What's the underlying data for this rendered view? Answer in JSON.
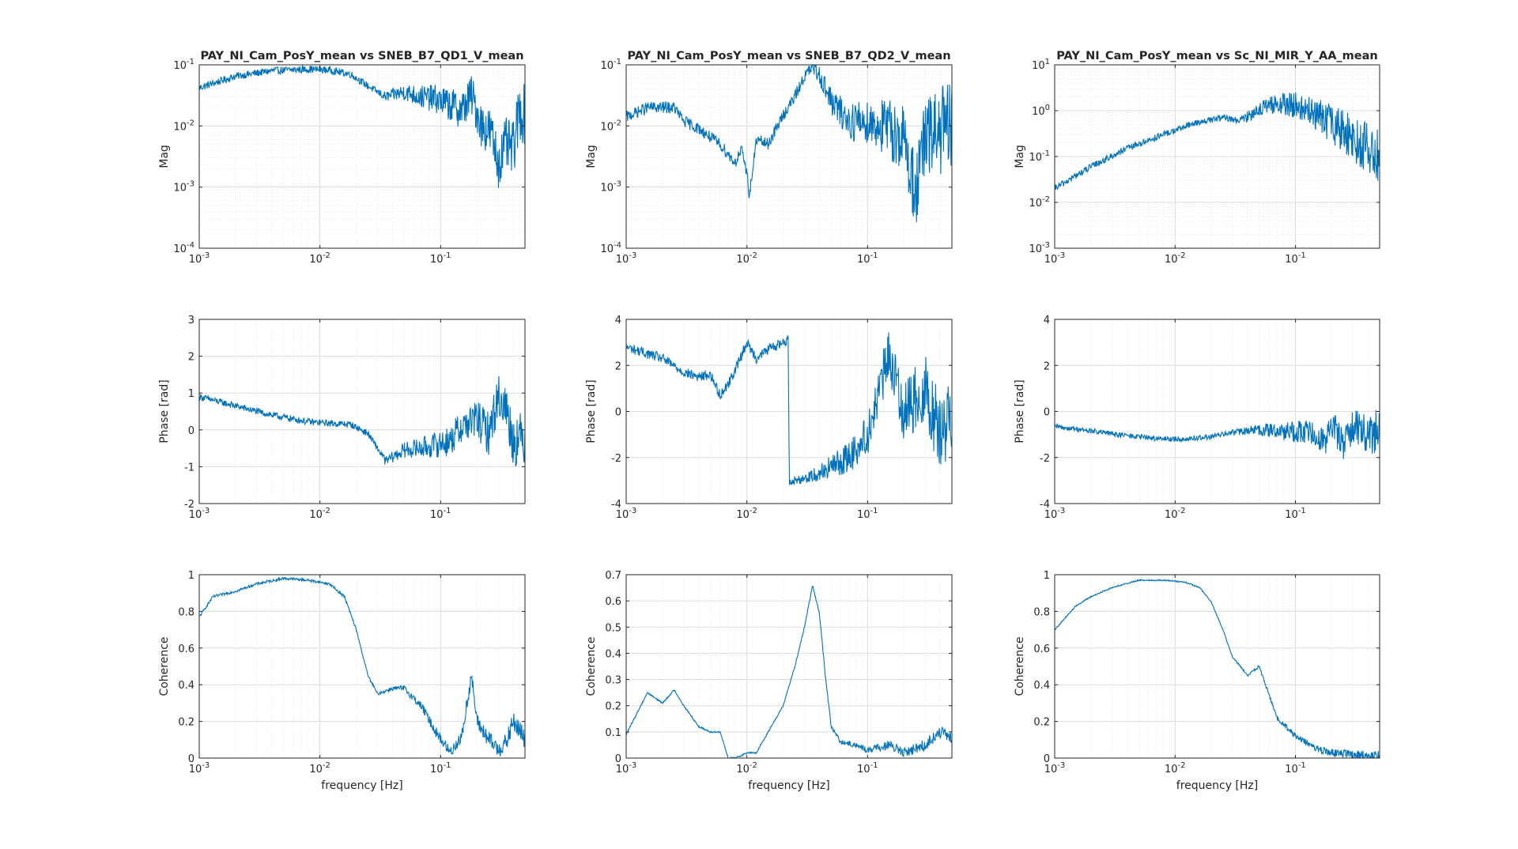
{
  "figure": {
    "columns": [
      {
        "title": "PAY_NI_Cam_PosY_mean vs SNEB_B7_QD1_V_mean"
      },
      {
        "title": "PAY_NI_Cam_PosY_mean vs SNEB_B7_QD2_V_mean"
      },
      {
        "title": "PAY_NI_Cam_PosY_mean vs Sc_NI_MIR_Y_AA_mean"
      }
    ],
    "xlabel": "frequency [Hz]",
    "line_color": "#0072BD"
  },
  "chart_data": [
    {
      "type": "line",
      "row": "magnitude",
      "column": 1,
      "title": "PAY_NI_Cam_PosY_mean vs SNEB_B7_QD1_V_mean",
      "xlabel": "",
      "ylabel": "Mag",
      "xscale": "log",
      "yscale": "log",
      "xlim": [
        0.001,
        0.5
      ],
      "ylim": [
        0.0001,
        0.1
      ],
      "xticks": [
        0.001,
        0.01,
        0.1
      ],
      "xticklabels": [
        [
          "10",
          "-3"
        ],
        [
          "10",
          "-2"
        ],
        [
          "10",
          "-1"
        ]
      ],
      "yticks": [
        0.0001,
        0.001,
        0.01,
        0.1
      ],
      "yticklabels": [
        [
          "10",
          "-4"
        ],
        [
          "10",
          "-3"
        ],
        [
          "10",
          "-2"
        ],
        [
          "10",
          "-1"
        ]
      ],
      "grid": true,
      "noise": 0.05,
      "x": [
        0.001,
        0.002,
        0.004,
        0.008,
        0.012,
        0.018,
        0.025,
        0.035,
        0.05,
        0.07,
        0.09,
        0.12,
        0.15,
        0.18,
        0.22,
        0.26,
        0.3,
        0.35,
        0.4,
        0.45,
        0.5
      ],
      "y": [
        0.042,
        0.065,
        0.08,
        0.085,
        0.082,
        0.07,
        0.045,
        0.03,
        0.036,
        0.03,
        0.028,
        0.022,
        0.018,
        0.032,
        0.01,
        0.008,
        0.0025,
        0.005,
        0.004,
        0.018,
        0.015
      ]
    },
    {
      "type": "line",
      "row": "phase",
      "column": 1,
      "xlabel": "",
      "ylabel": "Phase [rad]",
      "xscale": "log",
      "yscale": "linear",
      "xlim": [
        0.001,
        0.5
      ],
      "ylim": [
        -2,
        3
      ],
      "xticks": [
        0.001,
        0.01,
        0.1
      ],
      "xticklabels": [
        [
          "10",
          "-3"
        ],
        [
          "10",
          "-2"
        ],
        [
          "10",
          "-1"
        ]
      ],
      "yticks": [
        -2,
        -1,
        0,
        1,
        2,
        3
      ],
      "yticklabels": [
        [
          "-2"
        ],
        [
          "-1"
        ],
        [
          "0"
        ],
        [
          "1"
        ],
        [
          "2"
        ],
        [
          "3"
        ]
      ],
      "grid": true,
      "noise": 0.1,
      "x": [
        0.001,
        0.002,
        0.004,
        0.008,
        0.012,
        0.018,
        0.025,
        0.03,
        0.035,
        0.05,
        0.08,
        0.12,
        0.15,
        0.2,
        0.25,
        0.3,
        0.35,
        0.4,
        0.5
      ],
      "y": [
        0.9,
        0.65,
        0.4,
        0.22,
        0.18,
        0.15,
        -0.1,
        -0.5,
        -0.85,
        -0.55,
        -0.45,
        -0.3,
        0.1,
        0.3,
        -0.1,
        0.9,
        0.6,
        -0.3,
        -0.2
      ]
    },
    {
      "type": "line",
      "row": "coherence",
      "column": 1,
      "xlabel": "frequency [Hz]",
      "ylabel": "Coherence",
      "xscale": "log",
      "yscale": "linear",
      "xlim": [
        0.001,
        0.5
      ],
      "ylim": [
        0,
        1
      ],
      "xticks": [
        0.001,
        0.01,
        0.1
      ],
      "xticklabels": [
        [
          "10",
          "-3"
        ],
        [
          "10",
          "-2"
        ],
        [
          "10",
          "-1"
        ]
      ],
      "yticks": [
        0,
        0.2,
        0.4,
        0.6,
        0.8,
        1
      ],
      "yticklabels": [
        [
          "0"
        ],
        [
          "0.2"
        ],
        [
          "0.4"
        ],
        [
          "0.6"
        ],
        [
          "0.8"
        ],
        [
          "1"
        ]
      ],
      "grid": true,
      "noise": 0.04,
      "x": [
        0.001,
        0.0013,
        0.002,
        0.003,
        0.005,
        0.008,
        0.012,
        0.016,
        0.02,
        0.025,
        0.03,
        0.04,
        0.05,
        0.07,
        0.09,
        0.12,
        0.15,
        0.18,
        0.2,
        0.25,
        0.3,
        0.35,
        0.4,
        0.45,
        0.5
      ],
      "y": [
        0.77,
        0.88,
        0.91,
        0.95,
        0.98,
        0.97,
        0.95,
        0.88,
        0.7,
        0.45,
        0.35,
        0.38,
        0.38,
        0.28,
        0.15,
        0.03,
        0.12,
        0.45,
        0.2,
        0.1,
        0.05,
        0.08,
        0.2,
        0.15,
        0.1
      ]
    },
    {
      "type": "line",
      "row": "magnitude",
      "column": 2,
      "title": "PAY_NI_Cam_PosY_mean vs SNEB_B7_QD2_V_mean",
      "xlabel": "",
      "ylabel": "Mag",
      "xscale": "log",
      "yscale": "log",
      "xlim": [
        0.001,
        0.5
      ],
      "ylim": [
        0.0001,
        0.1
      ],
      "xticks": [
        0.001,
        0.01,
        0.1
      ],
      "xticklabels": [
        [
          "10",
          "-3"
        ],
        [
          "10",
          "-2"
        ],
        [
          "10",
          "-1"
        ]
      ],
      "yticks": [
        0.0001,
        0.001,
        0.01,
        0.1
      ],
      "yticklabels": [
        [
          "10",
          "-4"
        ],
        [
          "10",
          "-3"
        ],
        [
          "10",
          "-2"
        ],
        [
          "10",
          "-1"
        ]
      ],
      "grid": true,
      "noise": 0.08,
      "x": [
        0.001,
        0.0015,
        0.0025,
        0.003,
        0.004,
        0.006,
        0.008,
        0.009,
        0.01,
        0.0105,
        0.012,
        0.015,
        0.02,
        0.025,
        0.03,
        0.035,
        0.04,
        0.05,
        0.07,
        0.1,
        0.15,
        0.2,
        0.25,
        0.3,
        0.35,
        0.4,
        0.5
      ],
      "y": [
        0.014,
        0.02,
        0.02,
        0.012,
        0.009,
        0.005,
        0.0025,
        0.004,
        0.0018,
        0.0007,
        0.006,
        0.005,
        0.015,
        0.03,
        0.065,
        0.09,
        0.07,
        0.025,
        0.012,
        0.012,
        0.009,
        0.006,
        0.0008,
        0.006,
        0.007,
        0.009,
        0.008
      ]
    },
    {
      "type": "line",
      "row": "phase",
      "column": 2,
      "xlabel": "",
      "ylabel": "Phase [rad]",
      "xscale": "log",
      "yscale": "linear",
      "xlim": [
        0.001,
        0.5
      ],
      "ylim": [
        -4,
        4
      ],
      "xticks": [
        0.001,
        0.01,
        0.1
      ],
      "xticklabels": [
        [
          "10",
          "-3"
        ],
        [
          "10",
          "-2"
        ],
        [
          "10",
          "-1"
        ]
      ],
      "yticks": [
        -4,
        -2,
        0,
        2,
        4
      ],
      "yticklabels": [
        [
          "-4"
        ],
        [
          "-2"
        ],
        [
          "0"
        ],
        [
          "2"
        ],
        [
          "4"
        ]
      ],
      "grid": true,
      "noise": 0.15,
      "x": [
        0.001,
        0.002,
        0.003,
        0.004,
        0.005,
        0.006,
        0.007,
        0.008,
        0.01,
        0.012,
        0.015,
        0.02,
        0.022,
        0.0225,
        0.025,
        0.035,
        0.05,
        0.07,
        0.1,
        0.12,
        0.15,
        0.2,
        0.3,
        0.4,
        0.5
      ],
      "y": [
        2.8,
        2.3,
        1.7,
        1.5,
        1.6,
        0.7,
        1.2,
        1.8,
        3.0,
        2.3,
        2.7,
        3.0,
        3.1,
        -3.0,
        -3.0,
        -2.8,
        -2.4,
        -2.0,
        -1.0,
        0.5,
        2.5,
        0,
        1,
        -1,
        0
      ]
    },
    {
      "type": "line",
      "row": "coherence",
      "column": 2,
      "xlabel": "frequency [Hz]",
      "ylabel": "Coherence",
      "xscale": "log",
      "yscale": "linear",
      "xlim": [
        0.001,
        0.5
      ],
      "ylim": [
        0,
        0.7
      ],
      "xticks": [
        0.001,
        0.01,
        0.1
      ],
      "xticklabels": [
        [
          "10",
          "-3"
        ],
        [
          "10",
          "-2"
        ],
        [
          "10",
          "-1"
        ]
      ],
      "yticks": [
        0,
        0.1,
        0.2,
        0.3,
        0.4,
        0.5,
        0.6,
        0.7
      ],
      "yticklabels": [
        [
          "0"
        ],
        [
          "0.1"
        ],
        [
          "0.2"
        ],
        [
          "0.3"
        ],
        [
          "0.4"
        ],
        [
          "0.5"
        ],
        [
          "0.6"
        ],
        [
          "0.7"
        ]
      ],
      "grid": true,
      "noise": 0.025,
      "x": [
        0.001,
        0.0015,
        0.002,
        0.0025,
        0.003,
        0.004,
        0.005,
        0.006,
        0.007,
        0.008,
        0.01,
        0.012,
        0.015,
        0.02,
        0.025,
        0.03,
        0.035,
        0.04,
        0.045,
        0.05,
        0.06,
        0.08,
        0.1,
        0.15,
        0.2,
        0.3,
        0.4,
        0.5
      ],
      "y": [
        0.09,
        0.25,
        0.21,
        0.26,
        0.2,
        0.12,
        0.1,
        0.1,
        0.0,
        0.0,
        0.02,
        0.02,
        0.1,
        0.2,
        0.35,
        0.5,
        0.66,
        0.55,
        0.3,
        0.12,
        0.06,
        0.05,
        0.03,
        0.05,
        0.02,
        0.05,
        0.1,
        0.07
      ]
    },
    {
      "type": "line",
      "row": "magnitude",
      "column": 3,
      "title": "PAY_NI_Cam_PosY_mean vs Sc_NI_MIR_Y_AA_mean",
      "xlabel": "",
      "ylabel": "Mag",
      "xscale": "log",
      "yscale": "log",
      "xlim": [
        0.001,
        0.5
      ],
      "ylim": [
        0.001,
        10
      ],
      "xticks": [
        0.001,
        0.01,
        0.1
      ],
      "xticklabels": [
        [
          "10",
          "-3"
        ],
        [
          "10",
          "-2"
        ],
        [
          "10",
          "-1"
        ]
      ],
      "yticks": [
        0.001,
        0.01,
        0.1,
        1,
        10
      ],
      "yticklabels": [
        [
          "10",
          "-3"
        ],
        [
          "10",
          "-2"
        ],
        [
          "10",
          "-1"
        ],
        [
          "10",
          "0"
        ],
        [
          "10",
          "1"
        ]
      ],
      "grid": true,
      "noise": 0.06,
      "x": [
        0.001,
        0.002,
        0.004,
        0.008,
        0.015,
        0.025,
        0.035,
        0.05,
        0.07,
        0.1,
        0.15,
        0.2,
        0.3,
        0.4,
        0.5
      ],
      "y": [
        0.02,
        0.06,
        0.15,
        0.3,
        0.55,
        0.7,
        0.6,
        1.1,
        1.4,
        1.3,
        0.8,
        0.5,
        0.25,
        0.15,
        0.1
      ]
    },
    {
      "type": "line",
      "row": "phase",
      "column": 3,
      "xlabel": "",
      "ylabel": "Phase [rad]",
      "xscale": "log",
      "yscale": "linear",
      "xlim": [
        0.001,
        0.5
      ],
      "ylim": [
        -4,
        4
      ],
      "xticks": [
        0.001,
        0.01,
        0.1
      ],
      "xticklabels": [
        [
          "10",
          "-3"
        ],
        [
          "10",
          "-2"
        ],
        [
          "10",
          "-1"
        ]
      ],
      "yticks": [
        -4,
        -2,
        0,
        2,
        4
      ],
      "yticklabels": [
        [
          "-4"
        ],
        [
          "-2"
        ],
        [
          "0"
        ],
        [
          "2"
        ],
        [
          "4"
        ]
      ],
      "grid": true,
      "noise": 0.08,
      "x": [
        0.001,
        0.002,
        0.004,
        0.008,
        0.012,
        0.02,
        0.03,
        0.05,
        0.08,
        0.12,
        0.15,
        0.18,
        0.2,
        0.25,
        0.3,
        0.4,
        0.5
      ],
      "y": [
        -0.65,
        -0.85,
        -1.05,
        -1.2,
        -1.2,
        -1.1,
        -0.9,
        -0.8,
        -0.85,
        -0.9,
        -1.0,
        -1.2,
        -0.5,
        -1.5,
        -0.5,
        -1.0,
        -0.8
      ]
    },
    {
      "type": "line",
      "row": "coherence",
      "column": 3,
      "xlabel": "frequency [Hz]",
      "ylabel": "Coherence",
      "xscale": "log",
      "yscale": "linear",
      "xlim": [
        0.001,
        0.5
      ],
      "ylim": [
        0,
        1
      ],
      "xticks": [
        0.001,
        0.01,
        0.1
      ],
      "xticklabels": [
        [
          "10",
          "-3"
        ],
        [
          "10",
          "-2"
        ],
        [
          "10",
          "-1"
        ]
      ],
      "yticks": [
        0,
        0.2,
        0.4,
        0.6,
        0.8,
        1
      ],
      "yticklabels": [
        [
          "0"
        ],
        [
          "0.2"
        ],
        [
          "0.4"
        ],
        [
          "0.6"
        ],
        [
          "0.8"
        ],
        [
          "1"
        ]
      ],
      "grid": true,
      "noise": 0.02,
      "x": [
        0.001,
        0.0015,
        0.002,
        0.003,
        0.005,
        0.008,
        0.012,
        0.016,
        0.02,
        0.025,
        0.03,
        0.035,
        0.04,
        0.05,
        0.06,
        0.07,
        0.1,
        0.15,
        0.2,
        0.3,
        0.5
      ],
      "y": [
        0.7,
        0.83,
        0.88,
        0.93,
        0.97,
        0.97,
        0.96,
        0.93,
        0.85,
        0.7,
        0.55,
        0.5,
        0.45,
        0.5,
        0.35,
        0.22,
        0.12,
        0.05,
        0.03,
        0.02,
        0.01
      ]
    }
  ]
}
